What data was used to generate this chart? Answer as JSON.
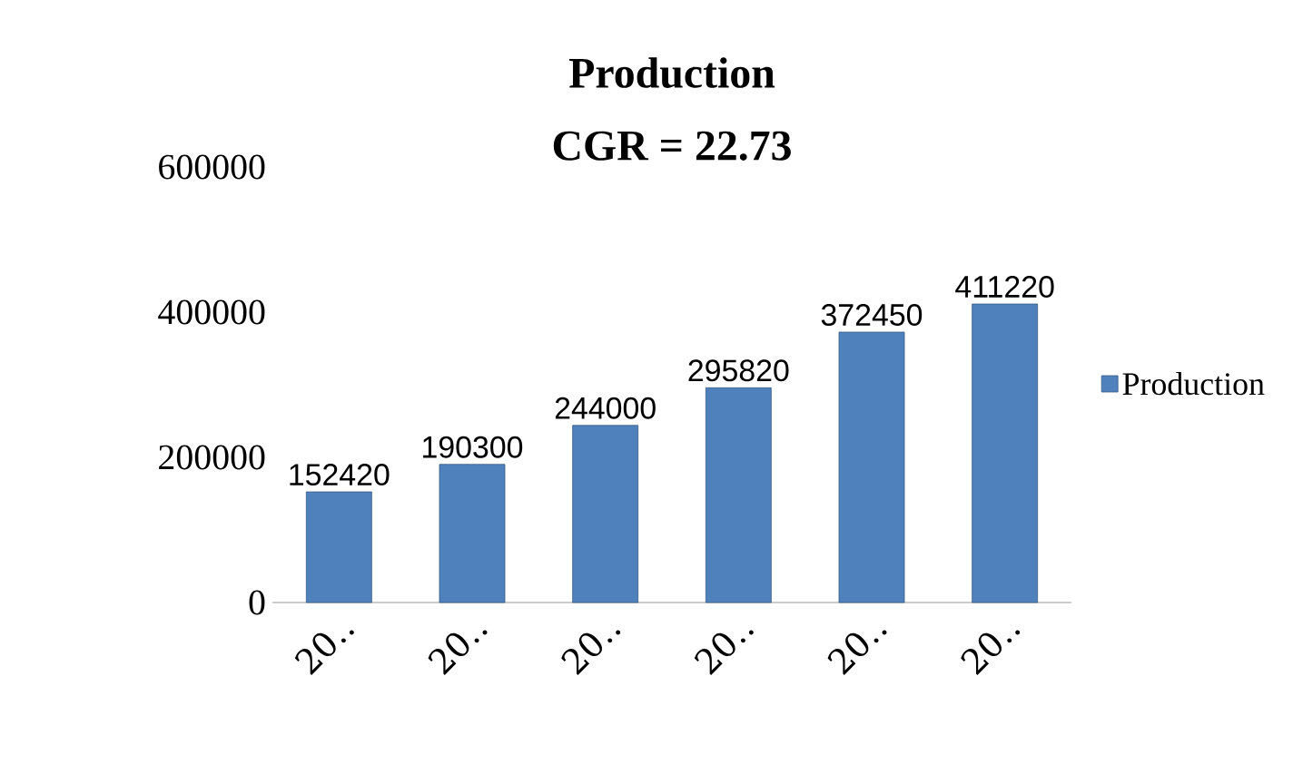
{
  "chart_data": {
    "type": "bar",
    "title": "Production",
    "subtitle": "CGR = 22.73",
    "categories": [
      "20‥",
      "20‥",
      "20‥",
      "20‥",
      "20‥",
      "20‥"
    ],
    "series": [
      {
        "name": "Production",
        "color": "#4f81bd",
        "values": [
          152420,
          190300,
          244000,
          295820,
          372450,
          411220
        ]
      }
    ],
    "ylim": [
      0,
      600000
    ],
    "yticks": [
      0,
      200000,
      400000,
      600000
    ],
    "legend": "right",
    "data_labels": true
  }
}
